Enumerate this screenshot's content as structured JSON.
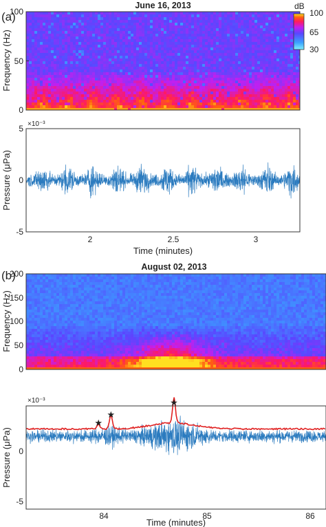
{
  "panel_a": {
    "label": "(a)",
    "title": "June 16, 2013",
    "colorbar": {
      "unit": "dB",
      "ticks": [
        "100",
        "65",
        "30"
      ],
      "range": [
        30,
        100
      ]
    }
  },
  "panel_b": {
    "label": "(b)",
    "title": "August 02, 2013"
  },
  "chart_data": [
    {
      "type": "heatmap",
      "title": "June 16, 2013",
      "ylabel": "Frequency (Hz)",
      "ylim": [
        0,
        100
      ],
      "yticks": [
        "0",
        "50",
        "100"
      ],
      "xlim": [
        1.68,
        3.33
      ],
      "colorbar": {
        "label": "dB",
        "min": 30,
        "max": 100,
        "ticks": [
          "30",
          "65",
          "100"
        ]
      },
      "description": "High energy below ~30 Hz, pulsing roughly every 0.15 minutes"
    },
    {
      "type": "line",
      "xlabel": "Time (minutes)",
      "ylabel": "Pressure (μPa)",
      "scale_note": "×10⁻³",
      "xlim": [
        1.68,
        3.33
      ],
      "ylim": [
        -5,
        5
      ],
      "xticks": [
        "2",
        "2.5",
        "3"
      ],
      "yticks": [
        "-5",
        "0",
        "5"
      ],
      "pulse_period_minutes": 0.15,
      "peak_amplitude": 2.3,
      "color": "#2b7bbf"
    },
    {
      "type": "heatmap",
      "title": "August 02, 2013",
      "ylabel": "Frequency (Hz)",
      "ylim": [
        0,
        200
      ],
      "yticks": [
        "0",
        "50",
        "100",
        "150",
        "200"
      ],
      "xlim": [
        83.3,
        86.2
      ],
      "hotspot_center_minutes": 84.7
    },
    {
      "type": "line",
      "xlabel": "Time (minutes)",
      "ylabel": "Pressure (μPa)",
      "scale_note": "×10⁻³",
      "xlim": [
        83.3,
        86.2
      ],
      "ylim": [
        -7.2,
        3
      ],
      "xticks": [
        "84",
        "85",
        "86"
      ],
      "yticks": [
        "-5",
        "0"
      ],
      "series": [
        {
          "color": "#2b7bbf"
        },
        {
          "color": "#e02020"
        }
      ],
      "peaks": [
        {
          "x": 84.0,
          "y": 1.3
        },
        {
          "x": 84.12,
          "y": 2.1
        },
        {
          "x": 84.73,
          "y": 3.3
        }
      ]
    }
  ]
}
